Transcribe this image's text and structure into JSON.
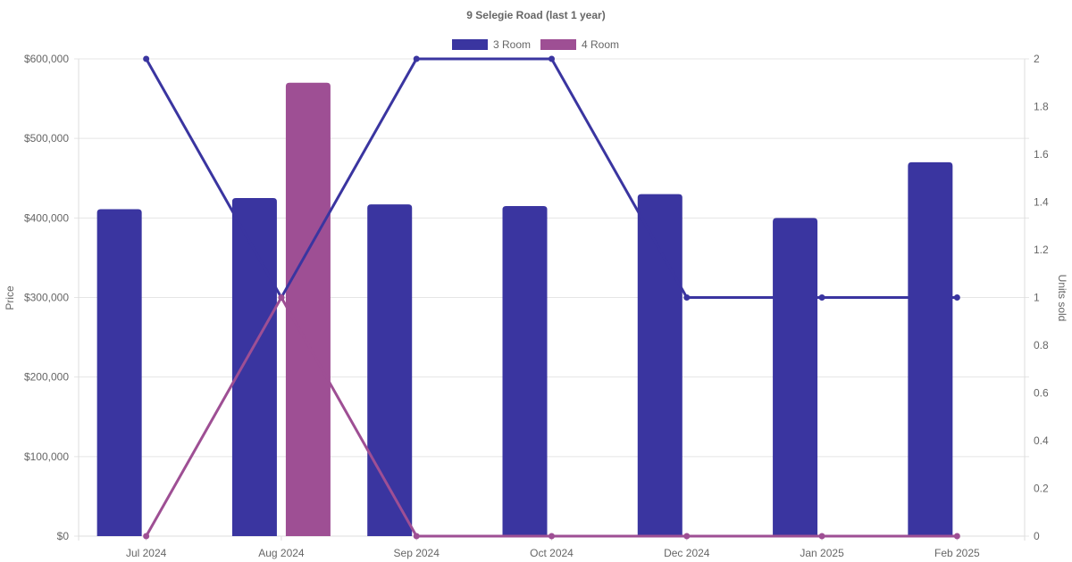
{
  "chart_data": {
    "type": "bar",
    "title": "9 Selegie Road (last 1 year)",
    "categories": [
      "Jul 2024",
      "Aug 2024",
      "Sep 2024",
      "Oct 2024",
      "Dec 2024",
      "Jan 2025",
      "Feb 2025"
    ],
    "y_left": {
      "label": "Price",
      "range": [
        0,
        600000
      ],
      "ticks": [
        "$0",
        "$100,000",
        "$200,000",
        "$300,000",
        "$400,000",
        "$500,000",
        "$600,000"
      ],
      "tick_values": [
        0,
        100000,
        200000,
        300000,
        400000,
        500000,
        600000
      ]
    },
    "y_right": {
      "label": "Units sold",
      "range": [
        0,
        2
      ],
      "ticks": [
        "0",
        "0.2",
        "0.4",
        "0.6",
        "0.8",
        "1",
        "1.2",
        "1.4",
        "1.6",
        "1.8",
        "2"
      ],
      "tick_values": [
        0,
        0.2,
        0.4,
        0.6,
        0.8,
        1,
        1.2,
        1.4,
        1.6,
        1.8,
        2
      ]
    },
    "legend": "top-center",
    "grid": true,
    "series": [
      {
        "name": "3 Room",
        "color": "#3a35a0",
        "bar_values": [
          411000,
          425000,
          417000,
          415000,
          430000,
          400000,
          470000
        ],
        "units_sold": [
          2,
          1,
          2,
          2,
          1,
          1,
          1
        ]
      },
      {
        "name": "4 Room",
        "color": "#9e4f94",
        "bar_values": [
          null,
          570000,
          null,
          null,
          null,
          null,
          null
        ],
        "units_sold": [
          0,
          1,
          0,
          0,
          0,
          0,
          0
        ]
      }
    ]
  }
}
